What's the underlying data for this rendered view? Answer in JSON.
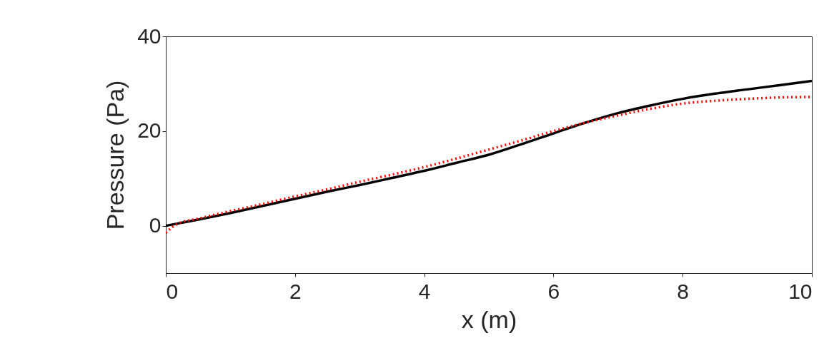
{
  "chart_data": {
    "type": "line",
    "xlabel": "x (m)",
    "ylabel": "Pressure (Pa)",
    "xlim": [
      0,
      10
    ],
    "ylim": [
      -10,
      40
    ],
    "xticks": [
      0,
      2,
      4,
      6,
      8,
      10
    ],
    "yticks": [
      0,
      20,
      40
    ],
    "grid": false,
    "legend": false,
    "series": [
      {
        "color": "#000000",
        "line_style": "solid",
        "x": [
          0,
          0.5,
          1,
          1.5,
          2,
          2.5,
          3,
          3.5,
          4,
          4.5,
          5,
          5.5,
          6,
          6.5,
          7,
          7.5,
          8,
          8.5,
          9,
          9.5,
          10
        ],
        "values": [
          0,
          1.3,
          2.7,
          4.2,
          5.7,
          7.2,
          8.6,
          10.1,
          11.6,
          13.3,
          15,
          17.2,
          19.5,
          21.8,
          23.8,
          25.4,
          26.8,
          27.9,
          28.8,
          29.7,
          30.6
        ]
      },
      {
        "color": "#ff0000",
        "line_style": "dotted",
        "x": [
          0,
          0.1,
          0.2,
          0.5,
          1,
          1.5,
          2,
          2.5,
          3,
          3.5,
          4,
          4.5,
          5,
          5.5,
          6,
          6.5,
          7,
          7.5,
          8,
          8.5,
          9,
          9.5,
          10
        ],
        "values": [
          -1.5,
          -0.3,
          0.5,
          1.5,
          3.1,
          4.6,
          6.2,
          7.7,
          9.3,
          10.8,
          12.4,
          14.2,
          16.1,
          18,
          20,
          21.8,
          23.3,
          24.7,
          25.8,
          26.4,
          26.8,
          27.1,
          27.2
        ]
      }
    ]
  }
}
